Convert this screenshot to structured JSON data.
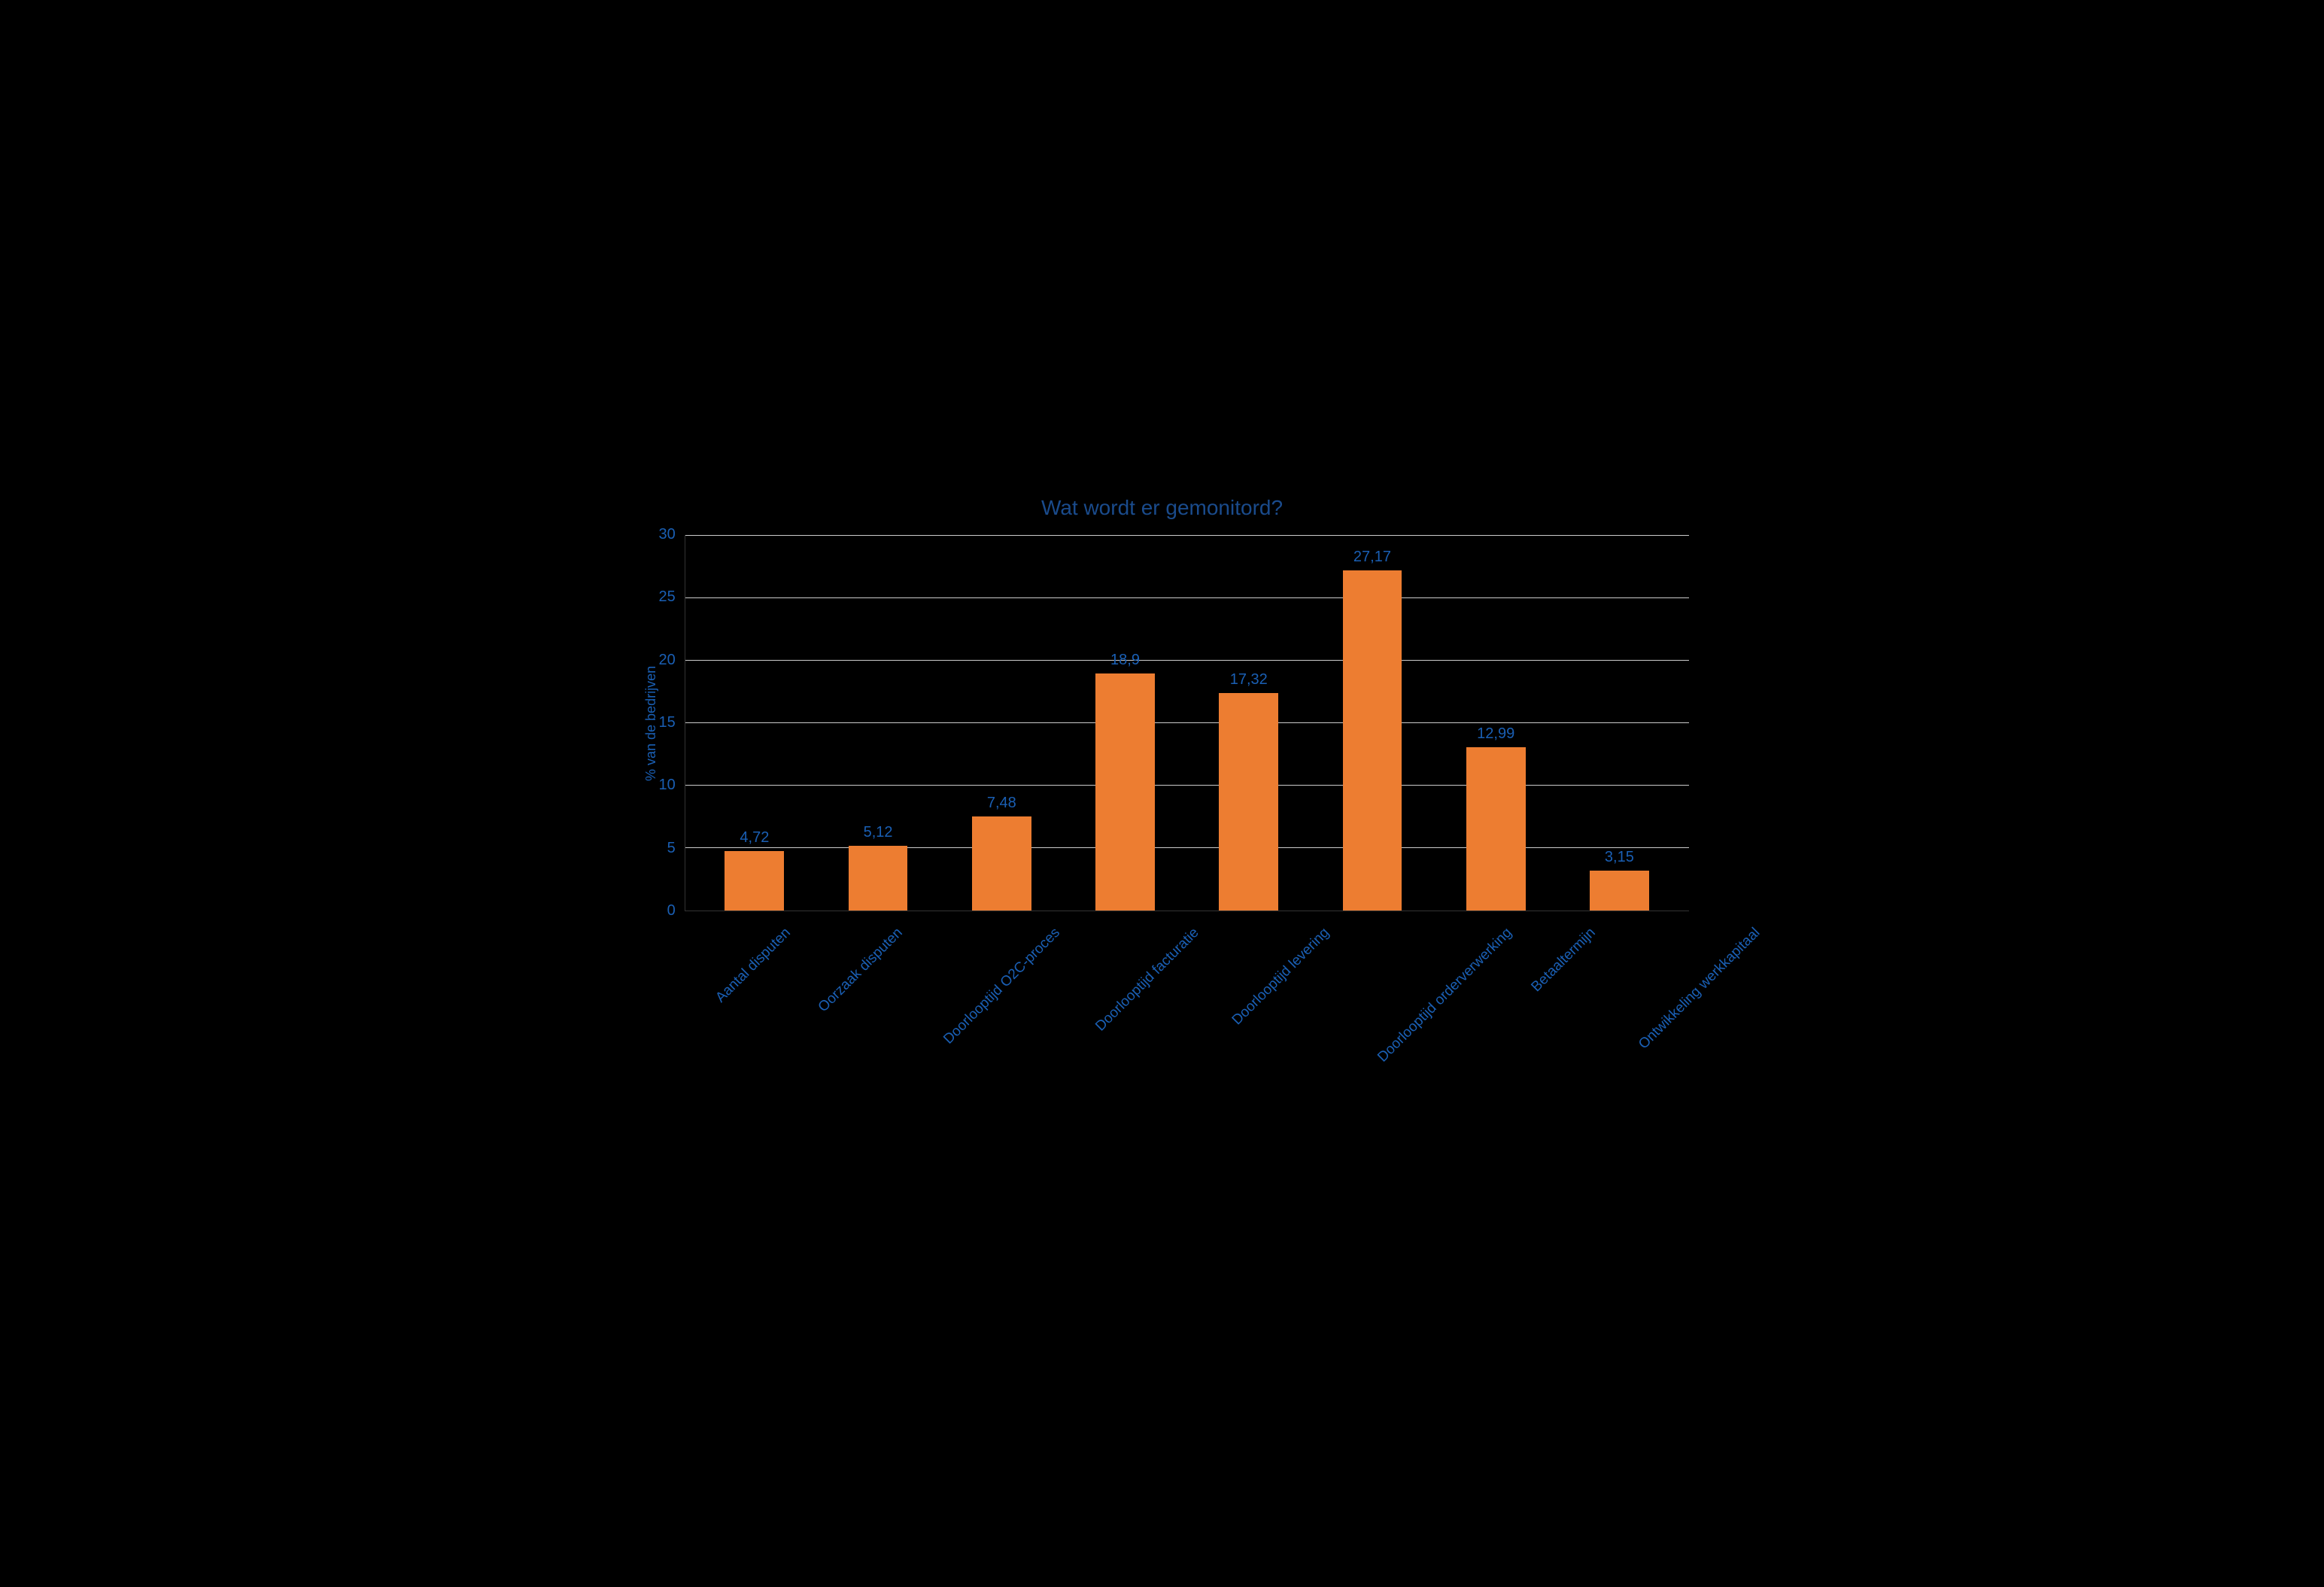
{
  "chart": {
    "type": "bar",
    "title": "Wat wordt er gemonitord?",
    "title_fontsize": 28,
    "title_color": "#1a4b8c",
    "background_color": "#000000",
    "ylabel": "% van de bedrijven",
    "ylabel_fontsize": 18,
    "axis_text_color": "#1a5fb4",
    "value_label_color": "#1a5fb4",
    "ylim": [
      0,
      30
    ],
    "ytick_step": 5,
    "yticks": [
      30,
      25,
      20,
      15,
      10,
      5,
      0
    ],
    "gridline_color": "#cccccc",
    "bar_color": "#ed7d31",
    "bar_width": 0.48,
    "categories": [
      "Aantal disputen",
      "Oorzaak disputen",
      "Doorlooptijd O2C-proces",
      "Doorlooptijd facturatie",
      "Doorlooptijd levering",
      "Doorlooptijd orderverwerking",
      "Betaaltermijn",
      "Ontwikkeling werkkapitaal"
    ],
    "values": [
      4.72,
      5.12,
      7.48,
      18.9,
      17.32,
      27.17,
      12.99,
      3.15
    ],
    "value_labels": [
      "4,72",
      "5,12",
      "7,48",
      "18,9",
      "17,32",
      "27,17",
      "12,99",
      "3,15"
    ]
  }
}
